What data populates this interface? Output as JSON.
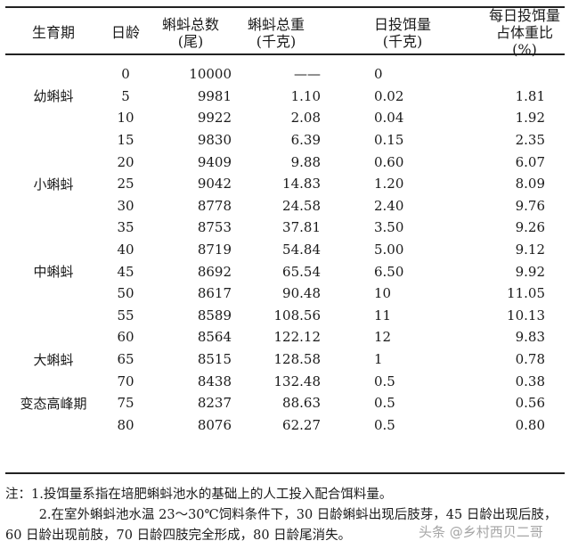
{
  "headers": [
    "生育期",
    "日龄",
    "蝌蚪总数\n(尾)",
    "蝌蚪总重\n(千克)",
    "日投饵量\n(千克)",
    "每日投饵量\n占体重比(%)"
  ],
  "rows": [
    [
      "",
      "0",
      "10000",
      "——",
      "0",
      ""
    ],
    [
      "幼蝌蚪",
      "5",
      "9981",
      "1.10",
      "0.02",
      "1.81"
    ],
    [
      "",
      "10",
      "9922",
      "2.08",
      "0.04",
      "1.92"
    ],
    [
      "",
      "15",
      "9830",
      "6.39",
      "0.15",
      "2.35"
    ],
    [
      "",
      "20",
      "9409",
      "9.88",
      "0.60",
      "6.07"
    ],
    [
      "小蝌蚪",
      "25",
      "9042",
      "14.83",
      "1.20",
      "8.09"
    ],
    [
      "",
      "30",
      "8778",
      "24.58",
      "2.40",
      "9.76"
    ],
    [
      "",
      "35",
      "8753",
      "37.81",
      "3.50",
      "9.26"
    ],
    [
      "",
      "40",
      "8719",
      "54.84",
      "5.00",
      "9.12"
    ],
    [
      "中蝌蚪",
      "45",
      "8692",
      "65.54",
      "6.50",
      "9.92"
    ],
    [
      "",
      "50",
      "8617",
      "90.48",
      "10",
      "11.05"
    ],
    [
      "",
      "55",
      "8589",
      "108.56",
      "11",
      "10.13"
    ],
    [
      "",
      "60",
      "8564",
      "122.12",
      "12",
      "9.83"
    ],
    [
      "大蝌蚪",
      "65",
      "8515",
      "128.58",
      "1",
      "0.78"
    ],
    [
      "",
      "70",
      "8438",
      "132.48",
      "0.5",
      "0.38"
    ],
    [
      "变态高峰期",
      "75",
      "8237",
      "88.63",
      "0.5",
      "0.56"
    ],
    [
      "",
      "80",
      "8076",
      "62.27",
      "0.5",
      "0.80"
    ]
  ],
  "notes": {
    "note1": "注：1.投饵量系指在培肥蝌蚪池水的基础上的人工投入配合饵料量。",
    "note2": "2.在室外蝌蚪池水温 23～30℃饲料条件下，30 日龄蝌蚪出现后肢芽，45 日龄出现后肢，60 日龄出现前肢，70 日龄四肢完全形成，80 日龄尾消失。"
  },
  "watermark": "头条 @乡村西贝二哥"
}
